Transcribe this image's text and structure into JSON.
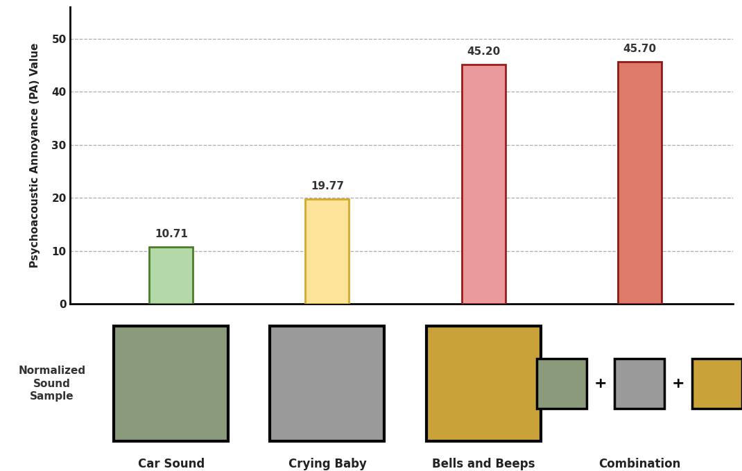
{
  "chart_data": {
    "type": "bar",
    "y_label": "Psychoacoustic Annoyance (PA) Value",
    "categories": [
      "Car Sound",
      "Crying Baby",
      "Bells and Beeps",
      "Combination"
    ],
    "values": [
      10.71,
      19.77,
      45.2,
      45.7
    ],
    "value_labels": [
      "10.71",
      "19.77",
      "45.20",
      "45.70"
    ],
    "colors": [
      "#b5d8a8",
      "#fde49a",
      "#eb9a9c",
      "#de7a6a"
    ],
    "ylim": [
      0,
      56
    ],
    "yticks": [
      0,
      10,
      20,
      30,
      40,
      50
    ],
    "grid": true,
    "data_labels": true,
    "annotations": [
      {
        "text": "Normalized\nSound\nSample"
      },
      {
        "text": "+"
      }
    ]
  }
}
